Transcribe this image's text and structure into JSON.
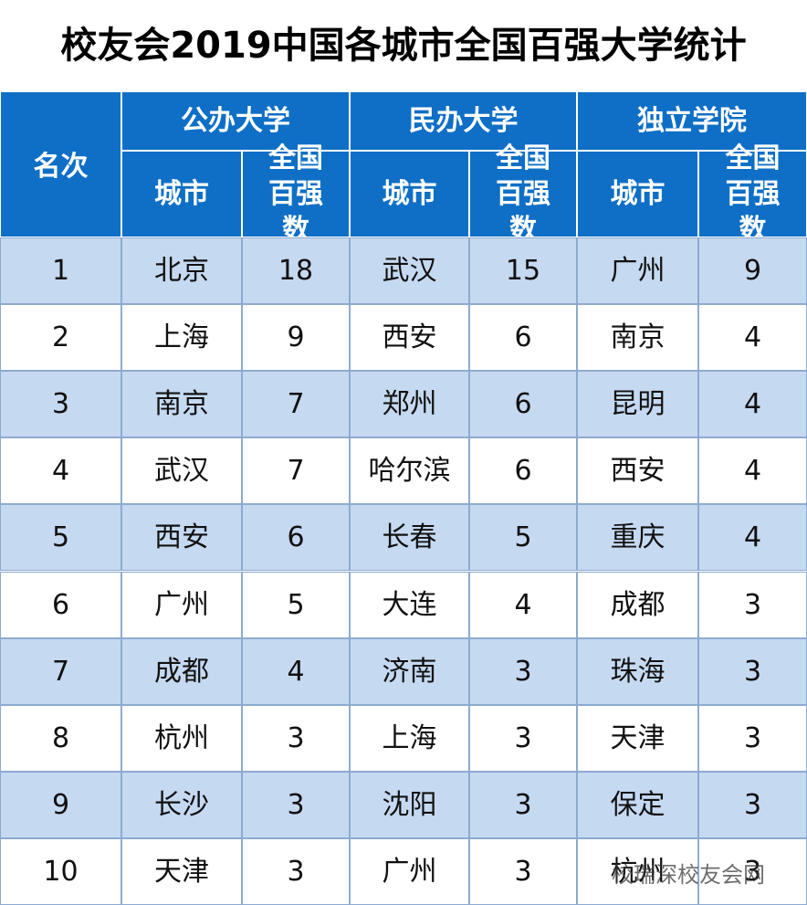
{
  "title": "校友会2019中国各城市全国百强大学统计",
  "header": {
    "rank": "名次",
    "groups": [
      {
        "name": "公办大学",
        "city": "城市",
        "count": "全国百强数"
      },
      {
        "name": "民办大学",
        "city": "城市",
        "count": "全国百强数"
      },
      {
        "name": "独立学院",
        "city": "城市",
        "count": "全国百强数"
      }
    ]
  },
  "table": {
    "rows": [
      [
        1,
        "北京",
        18,
        "武汉",
        15,
        "广州",
        9
      ],
      [
        2,
        "上海",
        9,
        "西安",
        6,
        "南京",
        4
      ],
      [
        3,
        "南京",
        7,
        "郑州",
        6,
        "昆明",
        4
      ],
      [
        4,
        "武汉",
        7,
        "哈尔滨",
        6,
        "西安",
        4
      ],
      [
        5,
        "西安",
        6,
        "长春",
        5,
        "重庆",
        4
      ],
      [
        6,
        "广州",
        5,
        "大连",
        4,
        "成都",
        3
      ],
      [
        7,
        "成都",
        4,
        "济南",
        3,
        "珠海",
        3
      ],
      [
        8,
        "杭州",
        3,
        "上海",
        3,
        "天津",
        3
      ],
      [
        9,
        "长沙",
        3,
        "沈阳",
        3,
        "保定",
        3
      ],
      [
        10,
        "天津",
        3,
        "广州",
        3,
        "杭州",
        3
      ]
    ]
  },
  "watermark": "校瑞深校友会网"
}
